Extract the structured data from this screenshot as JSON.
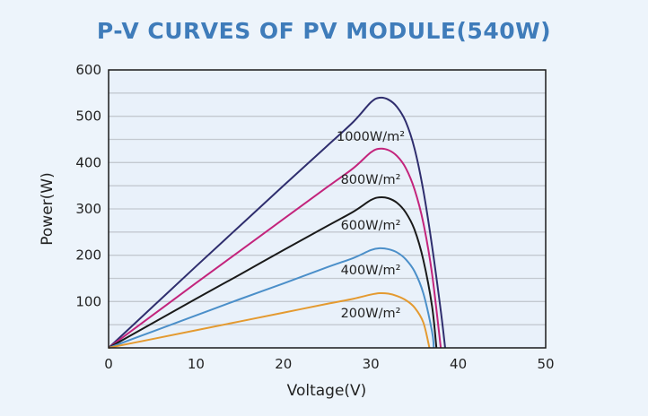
{
  "chart_data": {
    "type": "line",
    "title": "P-V CURVES OF PV MODULE(540W)",
    "xlabel": "Voltage(V)",
    "ylabel": "Power(W)",
    "xlim": [
      0,
      50
    ],
    "ylim": [
      0,
      600
    ],
    "xticks": [
      "0",
      "10",
      "20",
      "30",
      "40",
      "50"
    ],
    "yticks": [
      "100",
      "200",
      "300",
      "400",
      "500",
      "600"
    ],
    "grid": "horizontal every 50",
    "series": [
      {
        "name": "1000W/m²",
        "color": "#2f2e6e",
        "x": [
          0,
          5,
          10,
          15,
          20,
          25,
          28,
          30,
          31,
          32,
          33,
          34,
          35,
          36,
          37,
          38,
          38.5
        ],
        "y": [
          0,
          88,
          176,
          263,
          350,
          436,
          488,
          530,
          540,
          536,
          520,
          488,
          430,
          340,
          220,
          80,
          0
        ]
      },
      {
        "name": "800W/m²",
        "color": "#c3247c",
        "x": [
          0,
          5,
          10,
          15,
          20,
          25,
          28,
          30,
          31,
          32,
          33,
          34,
          35,
          36,
          37,
          38
        ],
        "y": [
          0,
          70,
          140,
          209,
          278,
          347,
          388,
          422,
          430,
          427,
          414,
          388,
          342,
          270,
          160,
          0
        ]
      },
      {
        "name": "600W/m²",
        "color": "#1a1a1a",
        "x": [
          0,
          5,
          10,
          15,
          20,
          25,
          28,
          30,
          31,
          32,
          33,
          34,
          35,
          36,
          37,
          37.5
        ],
        "y": [
          0,
          53,
          106,
          158,
          211,
          263,
          294,
          319,
          325,
          323,
          313,
          292,
          255,
          190,
          90,
          0
        ]
      },
      {
        "name": "400W/m²",
        "color": "#4b8fc9",
        "x": [
          0,
          5,
          10,
          15,
          20,
          25,
          28,
          30,
          31,
          32,
          33,
          34,
          35,
          36,
          37,
          37.2
        ],
        "y": [
          0,
          35,
          70,
          105,
          139,
          174,
          194,
          211,
          215,
          213,
          206,
          191,
          165,
          118,
          35,
          0
        ]
      },
      {
        "name": "200W/m²",
        "color": "#e49a30",
        "x": [
          0,
          5,
          10,
          15,
          20,
          25,
          28,
          30,
          31,
          32,
          33,
          34,
          35,
          36,
          36.7
        ],
        "y": [
          0,
          19,
          38,
          57,
          76,
          95,
          106,
          115,
          118,
          117,
          112,
          103,
          87,
          55,
          0
        ]
      }
    ]
  }
}
